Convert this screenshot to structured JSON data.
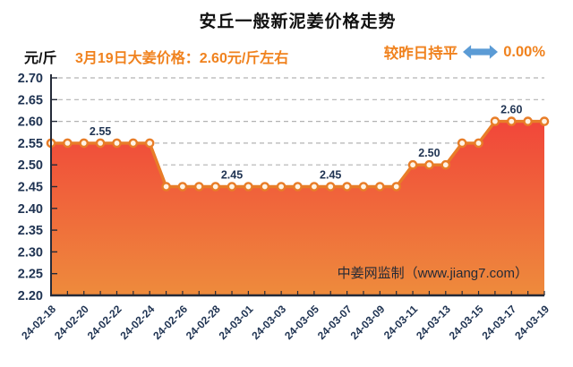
{
  "header": {
    "title": "安丘一般新泥姜价格走势",
    "unit_label": "元/斤",
    "price_note": "3月19日大姜价格：2.60元/斤左右",
    "change_label": "较昨日持平",
    "change_value": "0.00%",
    "arrow_icon": "left-right-arrow"
  },
  "watermark": "中姜网监制（www.jiang7.com）",
  "colors": {
    "accent_orange": "#f0821e",
    "arrow_blue": "#5b9bd5",
    "line_orange": "#e87d28",
    "marker_fill": "#fff3e4",
    "area_top_red": "#f1463a",
    "area_bottom_orange": "#ee8b3c",
    "axis_label_navy": "#1f3352",
    "gridline_gray": "#b3b3b3",
    "axis_dark": "#242a38",
    "watermark_dark": "#252a35",
    "title_black": "#111111"
  },
  "chart_data": {
    "type": "area",
    "title": "安丘一般新泥姜价格走势",
    "ylabel": "元/斤",
    "xlabel": "",
    "grid": "horizontal-dashed",
    "legend_position": "none",
    "ylim": [
      2.2,
      2.7
    ],
    "y_tick_step": 0.05,
    "x": [
      "24-02-18",
      "24-02-19",
      "24-02-20",
      "24-02-21",
      "24-02-22",
      "24-02-23",
      "24-02-24",
      "24-02-25",
      "24-02-26",
      "24-02-27",
      "24-02-28",
      "24-02-29",
      "24-03-01",
      "24-03-02",
      "24-03-03",
      "24-03-04",
      "24-03-05",
      "24-03-06",
      "24-03-07",
      "24-03-08",
      "24-03-09",
      "24-03-10",
      "24-03-11",
      "24-03-12",
      "24-03-13",
      "24-03-14",
      "24-03-15",
      "24-03-16",
      "24-03-17",
      "24-03-18",
      "24-03-19"
    ],
    "values": [
      2.55,
      2.55,
      2.55,
      2.55,
      2.55,
      2.55,
      2.55,
      2.45,
      2.45,
      2.45,
      2.45,
      2.45,
      2.45,
      2.45,
      2.45,
      2.45,
      2.45,
      2.45,
      2.45,
      2.45,
      2.45,
      2.45,
      2.5,
      2.5,
      2.5,
      2.55,
      2.55,
      2.6,
      2.6,
      2.6,
      2.6
    ],
    "x_tick_labels": [
      "24-02-18",
      "24-02-20",
      "24-02-22",
      "24-02-24",
      "24-02-26",
      "24-02-28",
      "24-03-01",
      "24-03-03",
      "24-03-05",
      "24-03-07",
      "24-03-09",
      "24-03-11",
      "24-03-13",
      "24-03-15",
      "24-03-17",
      "24-03-19"
    ],
    "point_labels": [
      {
        "index": 3,
        "text": "2.55"
      },
      {
        "index": 11,
        "text": "2.45"
      },
      {
        "index": 17,
        "text": "2.45"
      },
      {
        "index": 23,
        "text": "2.50"
      },
      {
        "index": 28,
        "text": "2.60"
      }
    ]
  }
}
